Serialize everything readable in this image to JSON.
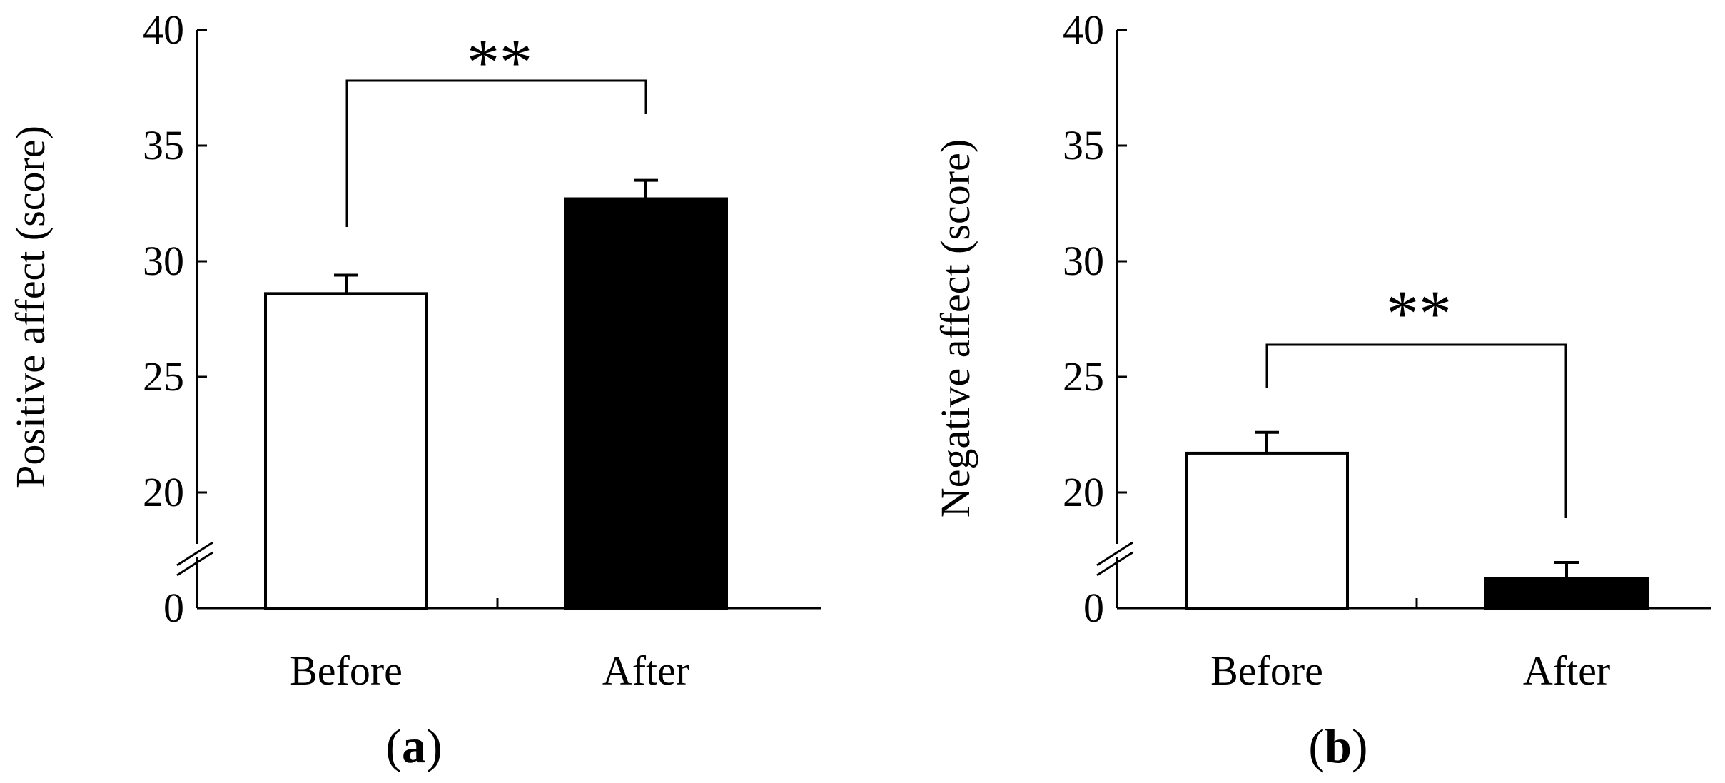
{
  "chart_data": [
    {
      "type": "bar",
      "panel_label": "a",
      "categories": [
        "Before",
        "After"
      ],
      "values": [
        28.6,
        32.7
      ],
      "errors": [
        0.8,
        0.8
      ],
      "bar_colors": [
        "#ffffff",
        "#000000"
      ],
      "ylabel": "Positive affect (score)",
      "ylim": [
        0,
        40
      ],
      "axis_break": true,
      "yticks": [
        0,
        20,
        25,
        30,
        35,
        40
      ],
      "ytick_labels": [
        "0",
        "20",
        "25",
        "30",
        "35",
        "40"
      ],
      "significance": {
        "label": "**",
        "between": [
          "Before",
          "After"
        ]
      }
    },
    {
      "type": "bar",
      "panel_label": "b",
      "categories": [
        "Before",
        "After"
      ],
      "values": [
        21.7,
        1.3
      ],
      "errors": [
        0.9,
        0.7
      ],
      "bar_colors": [
        "#ffffff",
        "#000000"
      ],
      "ylabel": "Negative affect (score)",
      "ylim": [
        0,
        40
      ],
      "axis_break": true,
      "yticks": [
        0,
        20,
        25,
        30,
        35,
        40
      ],
      "ytick_labels": [
        "0",
        "20",
        "25",
        "30",
        "35",
        "40"
      ],
      "significance": {
        "label": "**",
        "between": [
          "Before",
          "After"
        ]
      }
    }
  ]
}
